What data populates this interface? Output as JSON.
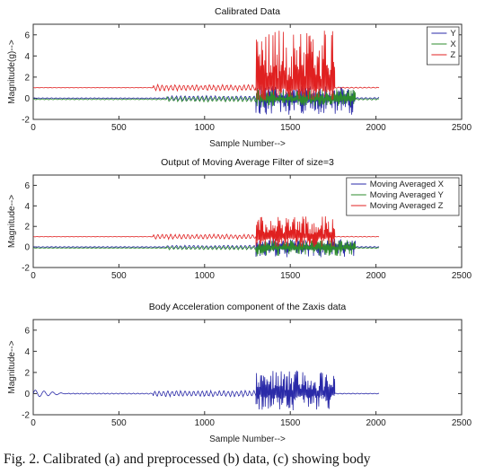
{
  "caption": "Fig. 2. Calibrated (a) and preprocessed (b) data, (c) showing body",
  "chart_data": [
    {
      "type": "line",
      "title": "Calibrated Data",
      "xlabel": "Sample Number-->",
      "ylabel": "Magnitude(g)-->",
      "xlim": [
        0,
        2500
      ],
      "ylim": [
        -2,
        7
      ],
      "xticks": [
        "0",
        "500",
        "1000",
        "1500",
        "2000",
        "2500"
      ],
      "yticks": [
        "-2",
        "0",
        "2",
        "4",
        "6"
      ],
      "legend_position": "top-right",
      "series": [
        {
          "name": "Y",
          "color": "#2a2aa8",
          "baseline": 0.0,
          "segments": [
            {
              "start": 0,
              "end": 780,
              "amp": 0.05
            },
            {
              "start": 780,
              "end": 1300,
              "amp": 0.25
            },
            {
              "start": 1300,
              "end": 1880,
              "amp": 0.9,
              "min": -1.6,
              "max": 1.2
            },
            {
              "start": 1880,
              "end": 2020,
              "amp": 0.08
            }
          ]
        },
        {
          "name": "X",
          "color": "#2e8b2e",
          "baseline": -0.1,
          "segments": [
            {
              "start": 0,
              "end": 780,
              "amp": 0.05
            },
            {
              "start": 780,
              "end": 1300,
              "amp": 0.25
            },
            {
              "start": 1300,
              "end": 1880,
              "amp": 0.6,
              "min": -0.8,
              "max": 0.9
            },
            {
              "start": 1880,
              "end": 2020,
              "amp": 0.08
            }
          ]
        },
        {
          "name": "Z",
          "color": "#e02020",
          "baseline": 1.0,
          "segments": [
            {
              "start": 0,
              "end": 700,
              "amp": 0.02
            },
            {
              "start": 700,
              "end": 1300,
              "amp": 0.3
            },
            {
              "start": 1300,
              "end": 1760,
              "amp": 2.8,
              "min": -0.2,
              "max": 6.5
            },
            {
              "start": 1760,
              "end": 2020,
              "amp": 0.05
            }
          ]
        }
      ]
    },
    {
      "type": "line",
      "title": "Output of Moving Average Filter of size=3",
      "xlabel": "",
      "ylabel": "Magnitude-->",
      "xlim": [
        0,
        2500
      ],
      "ylim": [
        -2,
        7
      ],
      "xticks": [
        "0",
        "500",
        "1000",
        "1500",
        "2000",
        "2500"
      ],
      "yticks": [
        "-2",
        "0",
        "2",
        "4",
        "6"
      ],
      "legend_position": "top-right",
      "series": [
        {
          "name": "Moving Averaged X",
          "color": "#2a2aa8",
          "baseline": 0.0,
          "segments": [
            {
              "start": 0,
              "end": 780,
              "amp": 0.04
            },
            {
              "start": 780,
              "end": 1300,
              "amp": 0.18
            },
            {
              "start": 1300,
              "end": 1880,
              "amp": 0.5,
              "min": -1.0,
              "max": 0.8
            },
            {
              "start": 1880,
              "end": 2020,
              "amp": 0.05
            }
          ]
        },
        {
          "name": "Moving Averaged Y",
          "color": "#2e8b2e",
          "baseline": -0.1,
          "segments": [
            {
              "start": 0,
              "end": 780,
              "amp": 0.04
            },
            {
              "start": 780,
              "end": 1300,
              "amp": 0.18
            },
            {
              "start": 1300,
              "end": 1880,
              "amp": 0.45,
              "min": -0.9,
              "max": 0.7
            },
            {
              "start": 1880,
              "end": 2020,
              "amp": 0.05
            }
          ]
        },
        {
          "name": "Moving Averaged Z",
          "color": "#e02020",
          "baseline": 1.0,
          "segments": [
            {
              "start": 0,
              "end": 700,
              "amp": 0.02
            },
            {
              "start": 700,
              "end": 1300,
              "amp": 0.25
            },
            {
              "start": 1300,
              "end": 1760,
              "amp": 1.6,
              "min": 0.0,
              "max": 3.0
            },
            {
              "start": 1760,
              "end": 2020,
              "amp": 0.04
            }
          ]
        }
      ]
    },
    {
      "type": "line",
      "title": "Body Acceleration component of the Zaxis data",
      "xlabel": "Sample Number-->",
      "ylabel": "Magnitude-->",
      "xlim": [
        0,
        2500
      ],
      "ylim": [
        -2,
        7
      ],
      "xticks": [
        "0",
        "500",
        "1000",
        "1500",
        "2000",
        "2500"
      ],
      "yticks": [
        "-2",
        "0",
        "2",
        "4",
        "6"
      ],
      "legend_position": "none",
      "series": [
        {
          "name": "",
          "color": "#2a2aa8",
          "baseline": 0.0,
          "segments": [
            {
              "start": 0,
              "end": 200,
              "amp": 0.35,
              "decay": true
            },
            {
              "start": 200,
              "end": 700,
              "amp": 0.05
            },
            {
              "start": 700,
              "end": 1300,
              "amp": 0.3
            },
            {
              "start": 1300,
              "end": 1760,
              "amp": 1.6,
              "min": -1.6,
              "max": 2.2
            },
            {
              "start": 1760,
              "end": 2020,
              "amp": 0.04
            }
          ]
        }
      ]
    }
  ]
}
